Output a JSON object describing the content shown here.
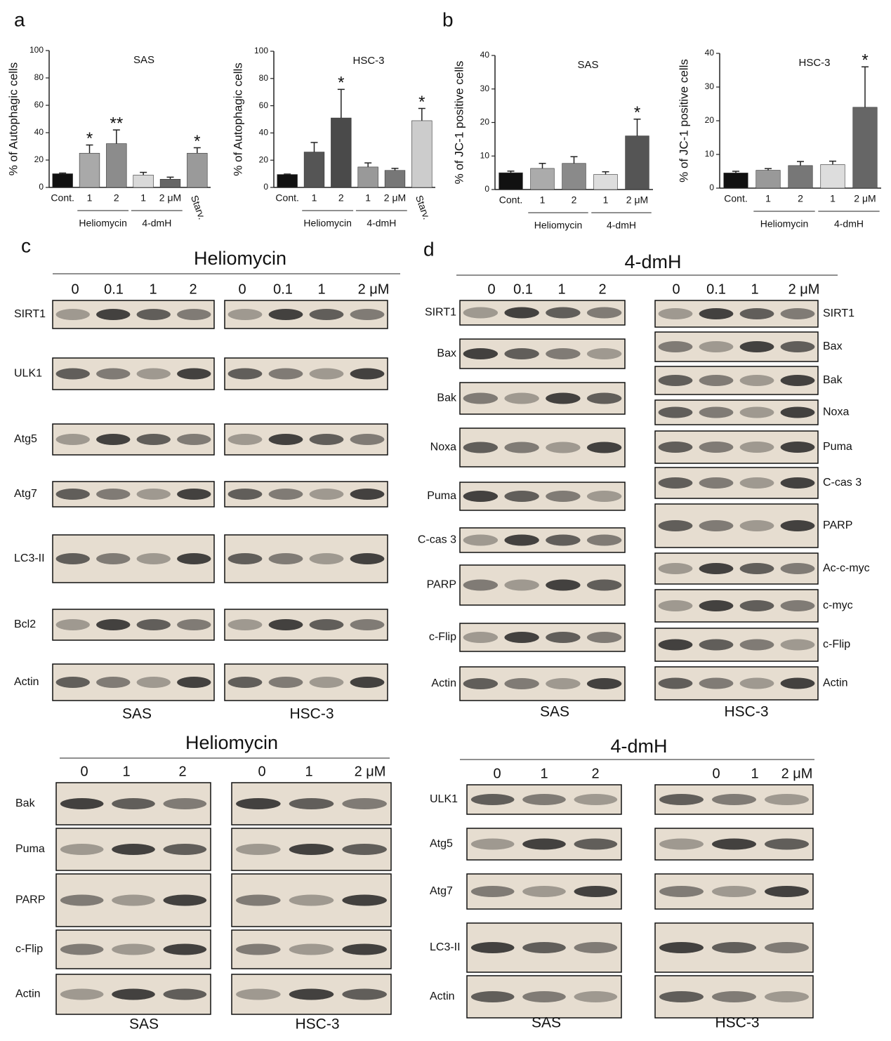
{
  "panel_labels": [
    "a",
    "b",
    "c",
    "d"
  ],
  "chart_data": [
    {
      "type": "bar",
      "title": "SAS",
      "y_label": "% of Autophagic cells",
      "categories": [
        "Cont.",
        "1",
        "2",
        "1",
        "2 μM",
        "Starv."
      ],
      "values": [
        10,
        25,
        32,
        9,
        6,
        25
      ],
      "errors": [
        0.5,
        6,
        10,
        2,
        1.5,
        4
      ],
      "colors": [
        "#111111",
        "#a9a9a9",
        "#8c8c8c",
        "#d9d9d9",
        "#666666",
        "#9a9a9a"
      ],
      "annotations": [
        {
          "index": 1,
          "text": "*"
        },
        {
          "index": 2,
          "text": "**"
        },
        {
          "index": 5,
          "text": "*"
        }
      ],
      "groups": [
        {
          "label": "Heliomycin",
          "from": 1,
          "to": 2
        },
        {
          "label": "4-dmH",
          "from": 3,
          "to": 4
        }
      ],
      "ylim": [
        0,
        100
      ],
      "yticks": [
        0,
        20,
        40,
        60,
        80,
        100
      ]
    },
    {
      "type": "bar",
      "title": "HSC-3",
      "y_label": "% of Autophagic cells",
      "categories": [
        "Cont.",
        "1",
        "2",
        "1",
        "2 μM",
        "Starv."
      ],
      "values": [
        9.5,
        26,
        51,
        15,
        12.5,
        49
      ],
      "errors": [
        0.3,
        7,
        21,
        3,
        1.5,
        9
      ],
      "colors": [
        "#111111",
        "#555555",
        "#4a4a4a",
        "#999999",
        "#777777",
        "#cccccc"
      ],
      "annotations": [
        {
          "index": 2,
          "text": "*"
        },
        {
          "index": 5,
          "text": "*"
        }
      ],
      "groups": [
        {
          "label": "Heliomycin",
          "from": 1,
          "to": 2
        },
        {
          "label": "4-dmH",
          "from": 3,
          "to": 4
        }
      ],
      "ylim": [
        0,
        100
      ],
      "yticks": [
        0,
        20,
        40,
        60,
        80,
        100
      ]
    },
    {
      "type": "bar",
      "title": "SAS",
      "y_label": "% of JC-1 positive cells",
      "categories": [
        "Cont.",
        "1",
        "2",
        "1",
        "2 μM"
      ],
      "values": [
        5,
        6.3,
        7.8,
        4.5,
        16
      ],
      "errors": [
        0.5,
        1.5,
        2,
        0.8,
        5
      ],
      "colors": [
        "#111111",
        "#ababab",
        "#8a8a8a",
        "#dddddd",
        "#555555"
      ],
      "annotations": [
        {
          "index": 4,
          "text": "*"
        }
      ],
      "groups": [
        {
          "label": "Heliomycin",
          "from": 1,
          "to": 2
        },
        {
          "label": "4-dmH",
          "from": 3,
          "to": 4
        }
      ],
      "ylim": [
        0,
        40
      ],
      "yticks": [
        0,
        10,
        20,
        30,
        40
      ]
    },
    {
      "type": "bar",
      "title": "HSC-3",
      "y_label": "% of JC-1 positive cells",
      "categories": [
        "Cont.",
        "1",
        "2",
        "1",
        "2 μM"
      ],
      "values": [
        4.5,
        5.3,
        6.7,
        7,
        24
      ],
      "errors": [
        0.5,
        0.5,
        1.2,
        1,
        12
      ],
      "colors": [
        "#111111",
        "#999999",
        "#777777",
        "#dddddd",
        "#666666"
      ],
      "annotations": [
        {
          "index": 4,
          "text": "*"
        }
      ],
      "groups": [
        {
          "label": "Heliomycin",
          "from": 1,
          "to": 2
        },
        {
          "label": "4-dmH",
          "from": 3,
          "to": 4
        }
      ],
      "ylim": [
        0,
        40
      ],
      "yticks": [
        0,
        10,
        20,
        30,
        40
      ]
    }
  ],
  "blots": [
    {
      "title": "Heliomycin",
      "doses_left": [
        "0",
        "0.1",
        "1",
        "2"
      ],
      "doses_right": [
        "0",
        "0.1",
        "1",
        "2 μM"
      ],
      "rows_left": [
        "SIRT1",
        "ULK1",
        "Atg5",
        "Atg7",
        "LC3-II",
        "Bcl2",
        "Actin"
      ],
      "rows_right": [],
      "cell_lines": [
        "SAS",
        "HSC-3"
      ]
    },
    {
      "title": "4-dmH",
      "doses_left": [
        "0",
        "0.1",
        "1",
        "2"
      ],
      "doses_right": [
        "0",
        "0.1",
        "1",
        "2 μM"
      ],
      "rows_left": [
        "SIRT1",
        "Bax",
        "Bak",
        "Noxa",
        "Puma",
        "C-cas 3",
        "PARP",
        "c-Flip",
        "Actin"
      ],
      "rows_right": [
        "SIRT1",
        "Bax",
        "Bak",
        "Noxa",
        "Puma",
        "C-cas 3",
        "PARP",
        "Ac-c-myc",
        "c-myc",
        "c-Flip",
        "Actin"
      ],
      "cell_lines": [
        "SAS",
        "HSC-3"
      ]
    },
    {
      "title": "Heliomycin",
      "doses_left": [
        "0",
        "1",
        "2"
      ],
      "doses_right": [
        "0",
        "1",
        "2 μM"
      ],
      "rows_left": [
        "Bak",
        "Puma",
        "PARP",
        "c-Flip",
        "Actin"
      ],
      "rows_right": [],
      "cell_lines": [
        "SAS",
        "HSC-3"
      ]
    },
    {
      "title": "4-dmH",
      "doses_left": [
        "0",
        "1",
        "2"
      ],
      "doses_right": [
        "0",
        "1",
        "2 μM"
      ],
      "rows_left": [
        "ULK1",
        "Atg5",
        "Atg7",
        "LC3-II",
        "Actin"
      ],
      "rows_right": [],
      "cell_lines": [
        "SAS",
        "HSC-3"
      ]
    }
  ]
}
